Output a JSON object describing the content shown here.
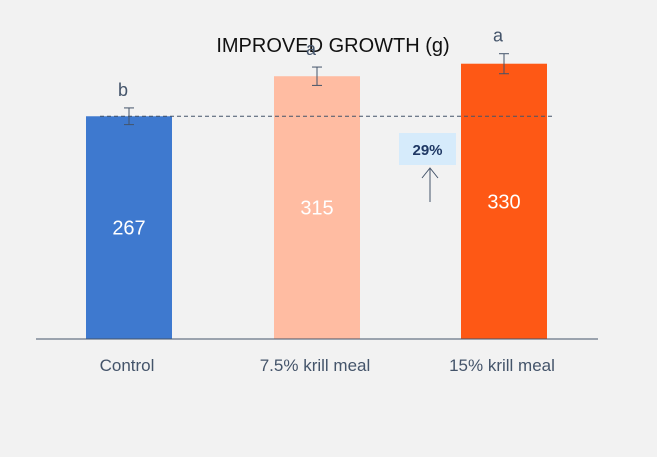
{
  "chart_data": {
    "type": "bar",
    "title": "IMPROVED GROWTH (g)",
    "xlabel": "",
    "ylabel": "",
    "ylim": [
      0,
      380
    ],
    "grid": false,
    "legend": "none",
    "categories": [
      "Control",
      "7.5% krill meal",
      "15% krill meal"
    ],
    "values": [
      267,
      315,
      330
    ],
    "value_labels": [
      "267",
      "315",
      "330"
    ],
    "error_bars": [
      10,
      11,
      12
    ],
    "significance": [
      "b",
      "a",
      "a"
    ],
    "colors": [
      "#3e79cf",
      "#ffbca2",
      "#fe5815"
    ],
    "reference_line": {
      "value": 267,
      "style": "dashed",
      "color": "#44546a"
    },
    "callout": {
      "text": "29%",
      "fill": "#d6ebfb"
    }
  }
}
